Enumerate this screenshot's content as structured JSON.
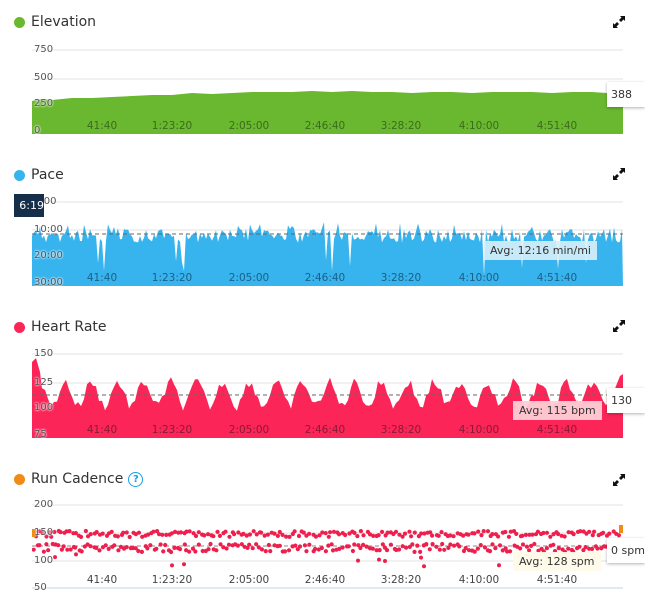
{
  "panels": {
    "elevation": {
      "title": "Elevation",
      "color": "#6ab830",
      "y_ticks": [
        "750",
        "500",
        "250",
        "0"
      ],
      "tooltip": "388",
      "expand_icon": "expand-icon"
    },
    "pace": {
      "title": "Pace",
      "color": "#37b3ee",
      "y_ticks": [
        "0:00",
        "10:00",
        "20:00",
        "30:00"
      ],
      "avg_label": "Avg: 12:16 min/mi",
      "tooltip": "6:19",
      "expand_icon": "expand-icon"
    },
    "heart_rate": {
      "title": "Heart Rate",
      "color": "#fb2558",
      "y_ticks": [
        "150",
        "125",
        "100",
        "75"
      ],
      "avg_label": "Avg: 115 bpm",
      "tooltip": "130",
      "expand_icon": "expand-icon"
    },
    "run_cadence": {
      "title": "Run Cadence",
      "color": "#f28a16",
      "help_icon": "?",
      "y_ticks": [
        "200",
        "150",
        "100",
        "50"
      ],
      "avg_label": "Avg: 128 spm",
      "tooltip": "0 spm",
      "expand_icon": "expand-icon"
    }
  },
  "x_ticks": [
    "41:40",
    "1:23:20",
    "2:05:00",
    "2:46:40",
    "3:28:20",
    "4:10:00",
    "4:51:40"
  ],
  "chart_data": [
    {
      "type": "area",
      "title": "Elevation",
      "xlabel": "",
      "ylabel": "",
      "x": [
        "0:00",
        "41:40",
        "1:23:20",
        "2:05:00",
        "2:46:40",
        "3:28:20",
        "4:10:00",
        "4:51:40",
        "5:20:00"
      ],
      "values": [
        290,
        310,
        330,
        345,
        355,
        365,
        360,
        370,
        388
      ],
      "ylim": [
        0,
        750
      ],
      "y_ticks": [
        0,
        250,
        500,
        750
      ],
      "grid": true,
      "tooltip_value": 388
    },
    {
      "type": "area",
      "title": "Pace",
      "x": [
        "0:00",
        "41:40",
        "1:23:20",
        "2:05:00",
        "2:46:40",
        "3:28:20",
        "4:10:00",
        "4:51:40",
        "5:20:00"
      ],
      "values_min_per_mi": [
        12.0,
        12.5,
        12.2,
        12.5,
        12.4,
        12.3,
        12.1,
        12.0,
        11.8
      ],
      "ylim": [
        "30:00",
        "0:00"
      ],
      "y_ticks": [
        "0:00",
        "10:00",
        "20:00",
        "30:00"
      ],
      "inverted_axis": true,
      "average": "12:16 min/mi",
      "tooltip_value": "6:19",
      "grid": true
    },
    {
      "type": "area",
      "title": "Heart Rate",
      "x": [
        "0:00",
        "41:40",
        "1:23:20",
        "2:05:00",
        "2:46:40",
        "3:28:20",
        "4:10:00",
        "4:51:40",
        "5:20:00"
      ],
      "values_bpm": [
        145,
        120,
        118,
        113,
        114,
        112,
        118,
        113,
        130
      ],
      "ylim": [
        75,
        150
      ],
      "y_ticks": [
        75,
        100,
        125,
        150
      ],
      "average": 115,
      "tooltip_value": 130,
      "grid": true
    },
    {
      "type": "scatter",
      "title": "Run Cadence",
      "x": [
        "0:00",
        "41:40",
        "1:23:20",
        "2:05:00",
        "2:46:40",
        "3:28:20",
        "4:10:00",
        "4:51:40",
        "5:20:00"
      ],
      "upper_band_spm": [
        148,
        147,
        147,
        146,
        146,
        145,
        145,
        144,
        146
      ],
      "lower_band_spm": [
        125,
        124,
        125,
        124,
        124,
        125,
        124,
        125,
        125
      ],
      "ylim": [
        50,
        200
      ],
      "y_ticks": [
        50,
        100,
        150,
        200
      ],
      "average": 128,
      "tooltip_value": 0,
      "grid": true
    }
  ]
}
